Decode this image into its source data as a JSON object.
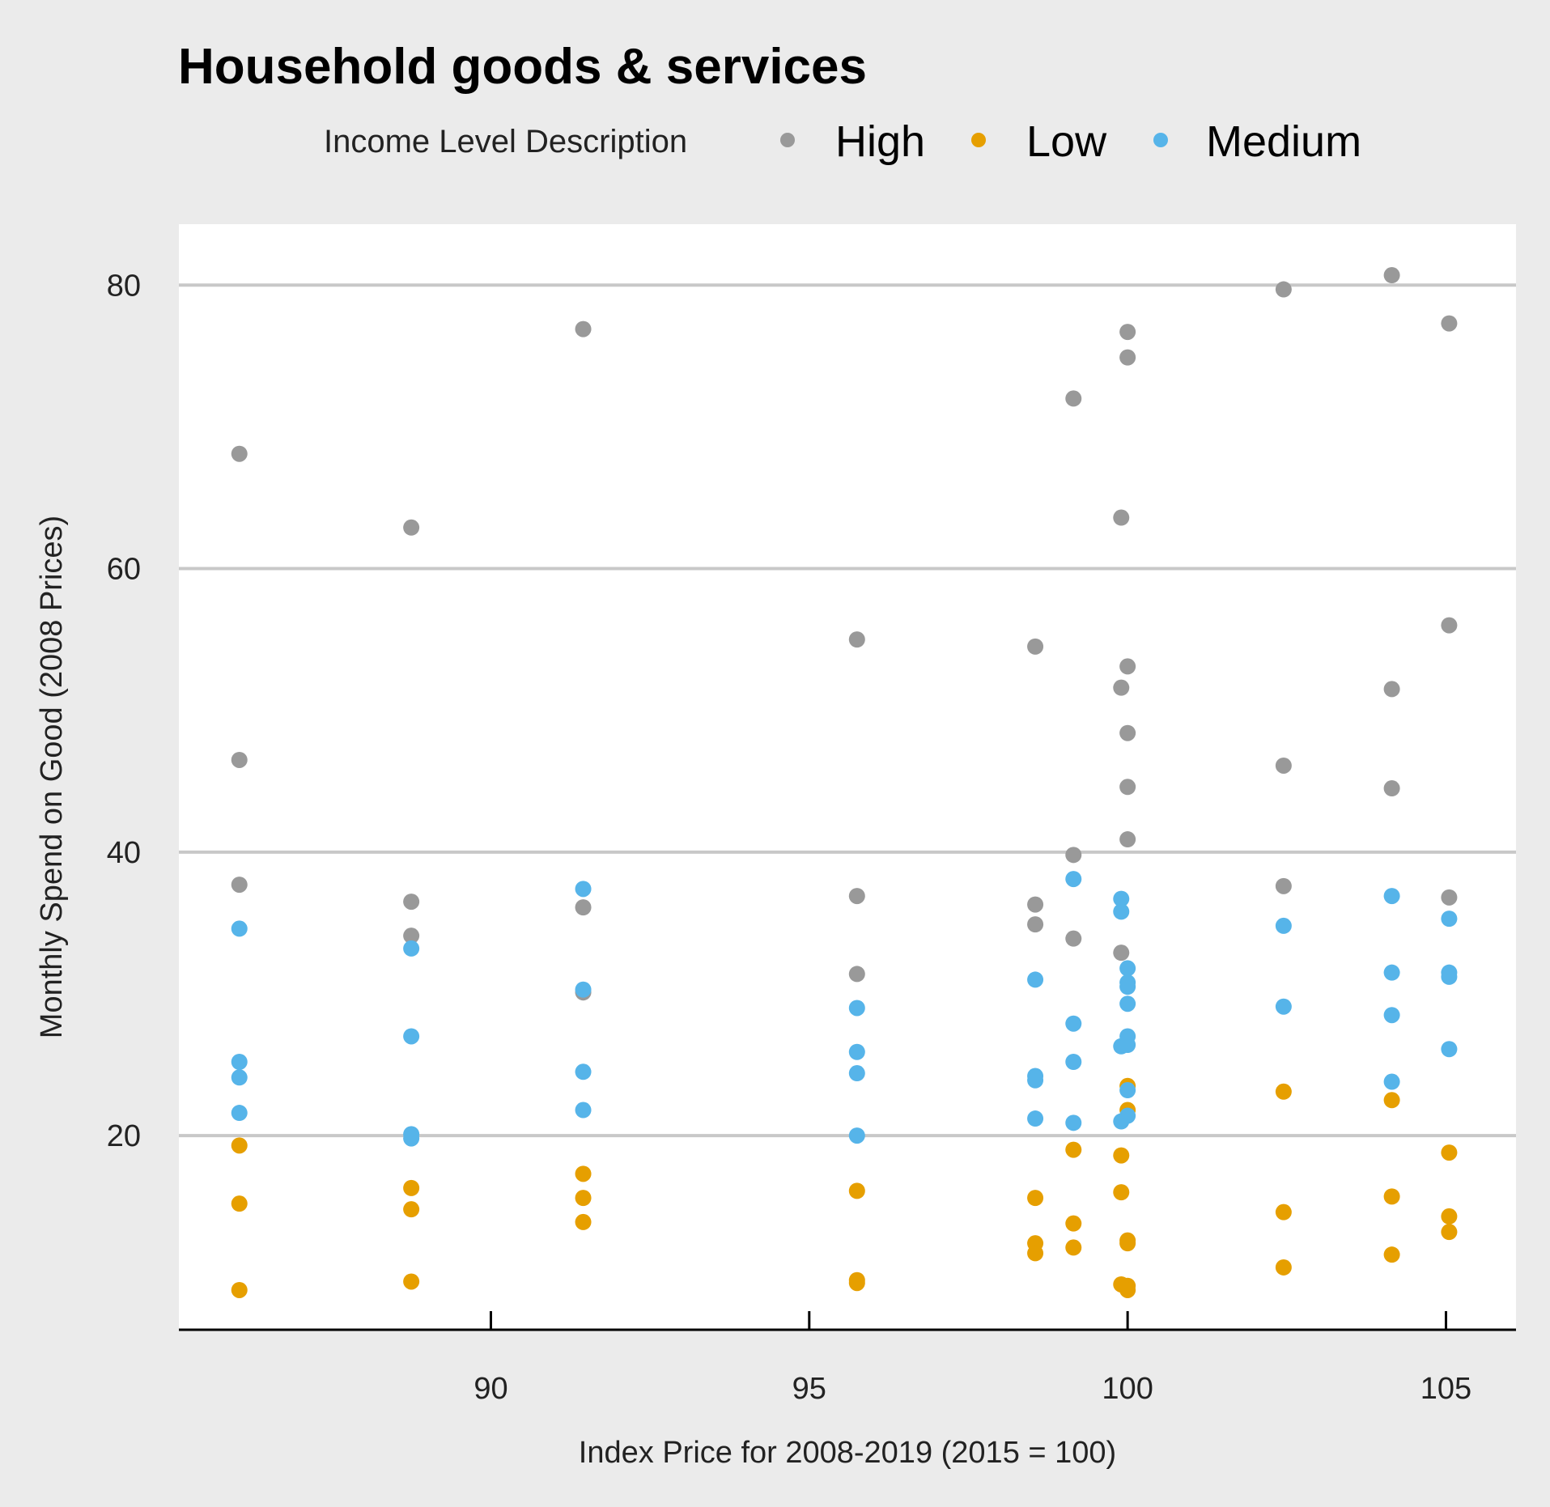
{
  "chart_data": {
    "type": "scatter",
    "title": "Household goods & services",
    "xlabel": "Index Price for 2008-2019 (2015 = 100)",
    "ylabel": "Monthly Spend on Good (2008 Prices)",
    "xlim": [
      85.1,
      106.1
    ],
    "ylim": [
      6.3,
      84.3
    ],
    "x_ticks": [
      90,
      95,
      100,
      105
    ],
    "y_ticks": [
      20,
      40,
      60,
      80
    ],
    "grid": "horizontal",
    "legend": {
      "title": "Income Level Description",
      "position": "top"
    },
    "series": [
      {
        "name": "High",
        "color": "#999999",
        "points": [
          [
            86.05,
            68.1
          ],
          [
            86.05,
            46.5
          ],
          [
            86.05,
            37.7
          ],
          [
            88.75,
            62.9
          ],
          [
            88.75,
            36.5
          ],
          [
            88.75,
            34.1
          ],
          [
            91.45,
            76.9
          ],
          [
            91.45,
            36.1
          ],
          [
            91.45,
            30.1
          ],
          [
            95.75,
            55.0
          ],
          [
            95.75,
            36.9
          ],
          [
            95.75,
            31.4
          ],
          [
            98.55,
            54.5
          ],
          [
            98.55,
            36.3
          ],
          [
            98.55,
            34.9
          ],
          [
            99.15,
            72.0
          ],
          [
            99.15,
            39.8
          ],
          [
            99.15,
            33.9
          ],
          [
            99.9,
            63.6
          ],
          [
            99.9,
            51.6
          ],
          [
            99.9,
            32.9
          ],
          [
            100.0,
            76.7
          ],
          [
            100.0,
            74.9
          ],
          [
            100.0,
            53.1
          ],
          [
            100.0,
            48.4
          ],
          [
            100.0,
            44.6
          ],
          [
            100.0,
            40.9
          ],
          [
            102.45,
            79.7
          ],
          [
            102.45,
            46.1
          ],
          [
            102.45,
            37.6
          ],
          [
            104.15,
            80.7
          ],
          [
            104.15,
            51.5
          ],
          [
            104.15,
            44.5
          ],
          [
            105.05,
            77.3
          ],
          [
            105.05,
            56.0
          ],
          [
            105.05,
            36.8
          ]
        ]
      },
      {
        "name": "Low",
        "color": "#e69f00",
        "points": [
          [
            86.05,
            19.3
          ],
          [
            86.05,
            15.2
          ],
          [
            86.05,
            9.1
          ],
          [
            88.75,
            16.3
          ],
          [
            88.75,
            14.8
          ],
          [
            88.75,
            9.7
          ],
          [
            91.45,
            17.3
          ],
          [
            91.45,
            15.6
          ],
          [
            91.45,
            13.9
          ],
          [
            95.75,
            16.1
          ],
          [
            95.75,
            9.8
          ],
          [
            95.75,
            9.6
          ],
          [
            98.55,
            15.6
          ],
          [
            98.55,
            12.4
          ],
          [
            98.55,
            11.7
          ],
          [
            99.15,
            19.0
          ],
          [
            99.15,
            13.8
          ],
          [
            99.15,
            12.1
          ],
          [
            99.9,
            18.6
          ],
          [
            99.9,
            16.0
          ],
          [
            99.9,
            9.5
          ],
          [
            100.0,
            23.5
          ],
          [
            100.0,
            21.8
          ],
          [
            100.0,
            12.6
          ],
          [
            100.0,
            12.4
          ],
          [
            100.0,
            9.4
          ],
          [
            100.0,
            9.1
          ],
          [
            102.45,
            23.1
          ],
          [
            102.45,
            14.6
          ],
          [
            102.45,
            10.7
          ],
          [
            104.15,
            22.5
          ],
          [
            104.15,
            15.7
          ],
          [
            104.15,
            11.6
          ],
          [
            105.05,
            18.8
          ],
          [
            105.05,
            14.3
          ],
          [
            105.05,
            13.2
          ]
        ]
      },
      {
        "name": "Medium",
        "color": "#56b4e9",
        "points": [
          [
            86.05,
            34.6
          ],
          [
            86.05,
            25.2
          ],
          [
            86.05,
            24.1
          ],
          [
            86.05,
            21.6
          ],
          [
            88.75,
            33.2
          ],
          [
            88.75,
            27.0
          ],
          [
            88.75,
            20.1
          ],
          [
            88.75,
            19.8
          ],
          [
            91.45,
            37.4
          ],
          [
            91.45,
            30.3
          ],
          [
            91.45,
            24.5
          ],
          [
            91.45,
            21.8
          ],
          [
            95.75,
            29.0
          ],
          [
            95.75,
            25.9
          ],
          [
            95.75,
            24.4
          ],
          [
            95.75,
            20.0
          ],
          [
            98.55,
            31.0
          ],
          [
            98.55,
            24.2
          ],
          [
            98.55,
            23.9
          ],
          [
            98.55,
            21.2
          ],
          [
            99.15,
            38.1
          ],
          [
            99.15,
            27.9
          ],
          [
            99.15,
            25.2
          ],
          [
            99.15,
            20.9
          ],
          [
            99.9,
            36.7
          ],
          [
            99.9,
            35.8
          ],
          [
            99.9,
            26.3
          ],
          [
            99.9,
            21.0
          ],
          [
            100.0,
            31.8
          ],
          [
            100.0,
            30.8
          ],
          [
            100.0,
            30.5
          ],
          [
            100.0,
            29.3
          ],
          [
            100.0,
            27.0
          ],
          [
            100.0,
            26.4
          ],
          [
            100.0,
            23.2
          ],
          [
            100.0,
            21.4
          ],
          [
            102.45,
            34.8
          ],
          [
            102.45,
            29.1
          ],
          [
            104.15,
            36.9
          ],
          [
            104.15,
            31.5
          ],
          [
            104.15,
            28.5
          ],
          [
            104.15,
            23.8
          ],
          [
            105.05,
            35.3
          ],
          [
            105.05,
            31.5
          ],
          [
            105.05,
            31.2
          ],
          [
            105.05,
            26.1
          ]
        ]
      }
    ]
  }
}
